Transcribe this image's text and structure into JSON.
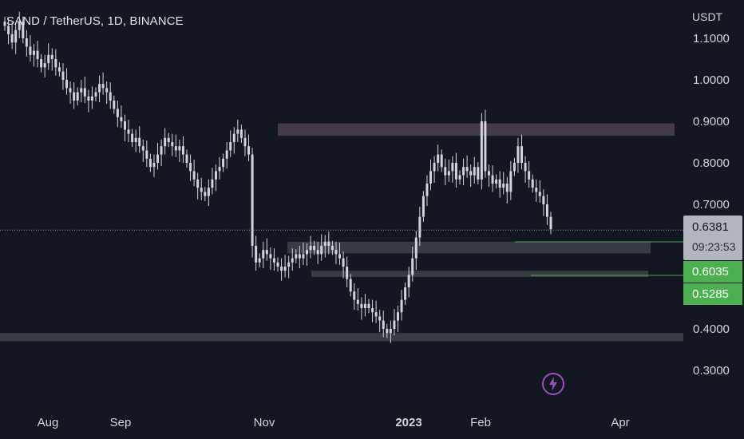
{
  "header": {
    "title": "SAND / TetherUS, 1D, BINANCE",
    "currency": "USDT"
  },
  "price_axis": {
    "ticks": [
      "1.1000",
      "1.0000",
      "0.9000",
      "0.8000",
      "0.7000",
      "0.4000",
      "0.3000"
    ]
  },
  "time_axis": {
    "ticks": [
      {
        "label": "Aug",
        "bold": false
      },
      {
        "label": "Sep",
        "bold": false
      },
      {
        "label": "Nov",
        "bold": false
      },
      {
        "label": "2023",
        "bold": true
      },
      {
        "label": "Feb",
        "bold": false
      },
      {
        "label": "Apr",
        "bold": false
      }
    ]
  },
  "markers": {
    "current_price": "0.6381",
    "countdown": "09:23:53",
    "level_1": "0.6035",
    "level_2": "0.5285"
  },
  "colors": {
    "background": "#131722",
    "candle": "#d1d4dc",
    "zone_upper": "#4a3f48",
    "zone_gray": "#3d3f45",
    "level_line": "#4caf50",
    "current_box": "#b2b5be",
    "green_box": "#4caf50",
    "bolt": "#9c4fbf"
  },
  "chart_data": {
    "type": "candlestick",
    "symbol": "SAND / TetherUS",
    "interval": "1D",
    "exchange": "BINANCE",
    "ylim": [
      0.25,
      1.15
    ],
    "current_price": 0.6381,
    "zones": [
      {
        "name": "resistance",
        "low": 0.865,
        "high": 0.895
      },
      {
        "name": "support-upper",
        "low": 0.582,
        "high": 0.61
      },
      {
        "name": "support-mid",
        "low": 0.525,
        "high": 0.54
      },
      {
        "name": "support-bottom",
        "low": 0.37,
        "high": 0.39
      }
    ],
    "levels": [
      0.6035,
      0.5285
    ],
    "closes": [
      1.13,
      1.11,
      1.09,
      1.12,
      1.14,
      1.1,
      1.08,
      1.06,
      1.07,
      1.05,
      1.03,
      1.04,
      1.06,
      1.05,
      1.03,
      1.02,
      1.0,
      0.98,
      0.97,
      0.95,
      0.97,
      0.98,
      0.96,
      0.95,
      0.96,
      0.97,
      0.99,
      0.98,
      0.97,
      0.95,
      0.93,
      0.91,
      0.9,
      0.88,
      0.87,
      0.85,
      0.86,
      0.84,
      0.83,
      0.81,
      0.79,
      0.8,
      0.82,
      0.84,
      0.86,
      0.85,
      0.84,
      0.83,
      0.84,
      0.82,
      0.8,
      0.78,
      0.76,
      0.74,
      0.73,
      0.72,
      0.74,
      0.76,
      0.78,
      0.79,
      0.81,
      0.83,
      0.85,
      0.87,
      0.88,
      0.86,
      0.84,
      0.82,
      0.6,
      0.56,
      0.57,
      0.59,
      0.58,
      0.57,
      0.56,
      0.55,
      0.54,
      0.55,
      0.56,
      0.57,
      0.58,
      0.57,
      0.58,
      0.59,
      0.6,
      0.59,
      0.58,
      0.6,
      0.61,
      0.6,
      0.59,
      0.58,
      0.57,
      0.55,
      0.52,
      0.49,
      0.47,
      0.46,
      0.45,
      0.46,
      0.45,
      0.44,
      0.43,
      0.42,
      0.4,
      0.39,
      0.4,
      0.42,
      0.44,
      0.47,
      0.5,
      0.53,
      0.57,
      0.62,
      0.67,
      0.72,
      0.75,
      0.78,
      0.8,
      0.82,
      0.79,
      0.77,
      0.78,
      0.8,
      0.76,
      0.77,
      0.79,
      0.78,
      0.77,
      0.79,
      0.76,
      0.9,
      0.78,
      0.77,
      0.75,
      0.76,
      0.74,
      0.75,
      0.73,
      0.78,
      0.8,
      0.84,
      0.8,
      0.78,
      0.76,
      0.74,
      0.73,
      0.72,
      0.7,
      0.67,
      0.64
    ]
  }
}
